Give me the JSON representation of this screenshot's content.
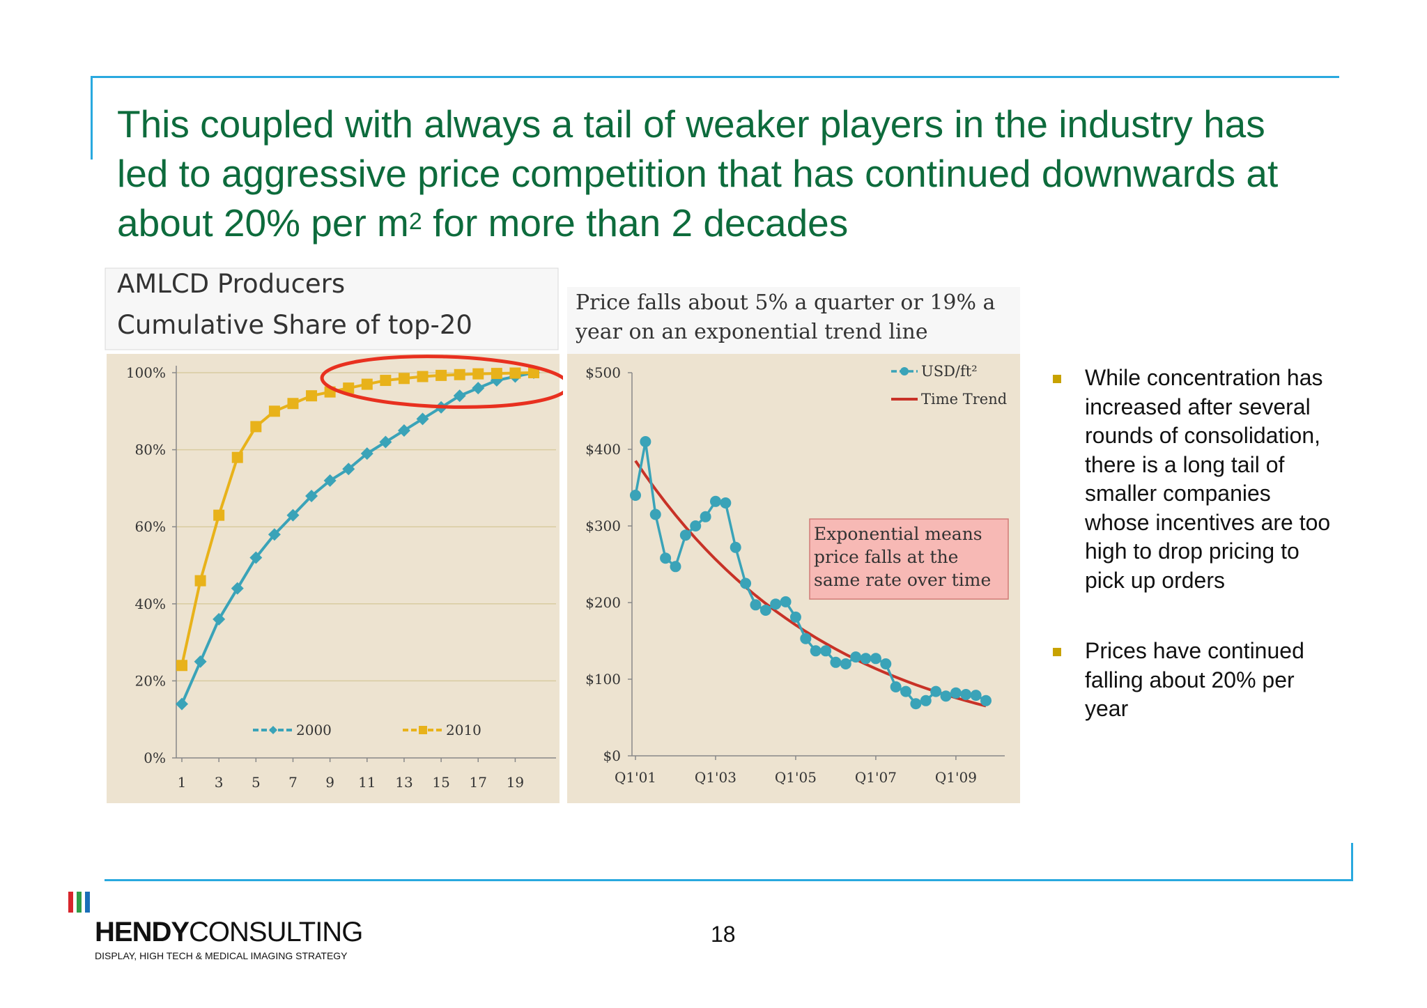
{
  "slide": {
    "title_main": "This coupled with always a tail of weaker players in the industry has led to aggressive price competition that has continued downwards at about 20% per m",
    "title_sup": "2",
    "title_end": " for more than 2 decades",
    "bullets": [
      "While concentration has increased after several rounds of consolidation,  there is a long tail of smaller companies whose incentives are too high to drop pricing to pick up orders",
      "Prices have continued falling about 20% per year"
    ],
    "page_number": "18",
    "logo": {
      "bold": "HENDY",
      "light": "CONSULTING",
      "tagline": "DISPLAY, HIGH TECH & MEDICAL IMAGING STRATEGY",
      "bar_colors": [
        "#d7262c",
        "#2e9e47",
        "#1a6fb8"
      ]
    },
    "colors": {
      "title_green": "#0d6b3c",
      "frame_blue": "#29a9df",
      "bullet_gold": "#c8a200",
      "chart_bg": "#ede3d0"
    }
  },
  "chart_data": [
    {
      "type": "line",
      "title": "AMLCD Producers",
      "subtitle": "Cumulative Share of top-20",
      "x": [
        1,
        2,
        3,
        4,
        5,
        6,
        7,
        8,
        9,
        10,
        11,
        12,
        13,
        14,
        15,
        16,
        17,
        18,
        19,
        20
      ],
      "xticks": [
        "1",
        "3",
        "5",
        "7",
        "9",
        "11",
        "13",
        "15",
        "17",
        "19"
      ],
      "yticks": [
        "0%",
        "20%",
        "40%",
        "60%",
        "80%",
        "100%"
      ],
      "ylim": [
        0,
        100
      ],
      "grid": true,
      "legend_position": "bottom",
      "series": [
        {
          "name": "2000",
          "color": "#3aa3b8",
          "marker": "diamond",
          "values": [
            14,
            25,
            36,
            44,
            52,
            58,
            63,
            68,
            72,
            75,
            79,
            82,
            85,
            88,
            91,
            94,
            96,
            98,
            99,
            100
          ]
        },
        {
          "name": "2010",
          "color": "#e8b21a",
          "marker": "square",
          "values": [
            24,
            46,
            63,
            78,
            86,
            90,
            92,
            94,
            95,
            96,
            97,
            98,
            98.5,
            99,
            99.3,
            99.5,
            99.7,
            99.8,
            99.9,
            100
          ]
        }
      ],
      "annotation": "red ellipse highlighting saturation near 100%"
    },
    {
      "type": "line",
      "title": "Price falls about 5% a quarter or 19% a year on an exponential trend line",
      "xticks": [
        "Q1'01",
        "Q1'03",
        "Q1'05",
        "Q1'07",
        "Q1'09"
      ],
      "yticks": [
        "$0",
        "$100",
        "$200",
        "$300",
        "$400",
        "$500"
      ],
      "ylim": [
        0,
        500
      ],
      "legend_position": "top-right",
      "series": [
        {
          "name": "USD/ft²",
          "color": "#3aa3b8",
          "marker": "circle",
          "values": [
            340,
            410,
            315,
            258,
            247,
            288,
            300,
            312,
            332,
            330,
            272,
            225,
            197,
            190,
            198,
            201,
            181,
            153,
            137,
            137,
            122,
            120,
            129,
            127,
            127,
            120,
            90,
            84,
            68,
            72,
            84,
            78,
            82,
            80,
            79,
            72
          ]
        },
        {
          "name": "Time Trend",
          "color": "#c83227",
          "type": "exponential",
          "start": 385,
          "end": 65
        }
      ],
      "annotation_text": "Exponential means price falls at the same rate over time"
    }
  ]
}
